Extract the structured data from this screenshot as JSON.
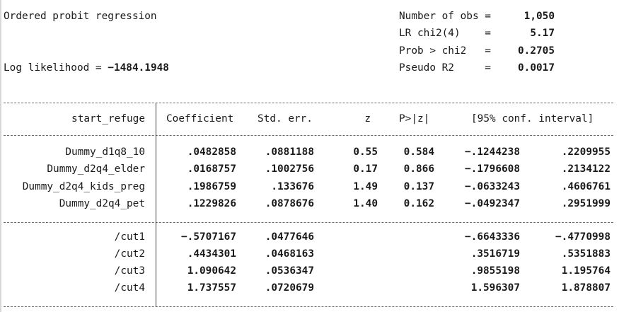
{
  "header": {
    "model": "Ordered probit regression",
    "loglik_label": "Log likelihood = ",
    "loglik_value": "-1484.1948",
    "stats": [
      {
        "label": "Number of obs =",
        "value": "1,050"
      },
      {
        "label": "LR chi2(4)    =",
        "value": "5.17"
      },
      {
        "label": "Prob > chi2   =",
        "value": "0.2705"
      },
      {
        "label": "Pseudo R2     =",
        "value": "0.0017"
      }
    ]
  },
  "table": {
    "depvar": "start_refuge",
    "columns": [
      "Coefficient",
      "Std. err.",
      "z",
      "P>|z|",
      "[95% conf. interval]"
    ],
    "rows": [
      {
        "name": "Dummy_d1q8_10",
        "coef": ".0482858",
        "se": ".0881188",
        "z": "0.55",
        "p": "0.584",
        "lo": "-.1244238",
        "hi": ".2209955"
      },
      {
        "name": "Dummy_d2q4_elder",
        "coef": ".0168757",
        "se": ".1002756",
        "z": "0.17",
        "p": "0.866",
        "lo": "-.1796608",
        "hi": ".2134122"
      },
      {
        "name": "Dummy_d2q4_kids_preg",
        "coef": ".1986759",
        "se": ".133676",
        "z": "1.49",
        "p": "0.137",
        "lo": "-.0633243",
        "hi": ".4606761"
      },
      {
        "name": "Dummy_d2q4_pet",
        "coef": ".1229826",
        "se": ".0878676",
        "z": "1.40",
        "p": "0.162",
        "lo": "-.0492347",
        "hi": ".2951999"
      }
    ],
    "cuts": [
      {
        "name": "/cut1",
        "coef": "-.5707167",
        "se": ".0477646",
        "lo": "-.6643336",
        "hi": "-.4770998"
      },
      {
        "name": "/cut2",
        "coef": ".4434301",
        "se": ".0468163",
        "lo": ".3516719",
        "hi": ".5351883"
      },
      {
        "name": "/cut3",
        "coef": "1.090642",
        "se": ".0536347",
        "lo": ".9855198",
        "hi": "1.195764"
      },
      {
        "name": "/cut4",
        "coef": "1.737557",
        "se": ".0720679",
        "lo": "1.596307",
        "hi": "1.878807"
      }
    ]
  }
}
